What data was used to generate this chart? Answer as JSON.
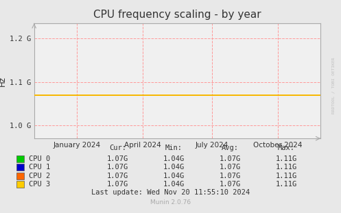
{
  "title": "CPU frequency scaling - by year",
  "ylabel": "Hz",
  "background_color": "#e8e8e8",
  "plot_bg_color": "#f0f0f0",
  "grid_color": "#ff9999",
  "yticks": [
    1000000000.0,
    1100000000.0,
    1200000000.0
  ],
  "ytick_labels": [
    "1.0 G",
    "1.1 G",
    "1.2 G"
  ],
  "ylim": [
    970000000.0,
    1235000000.0
  ],
  "xtick_labels": [
    "January 2024",
    "April 2024",
    "July 2024",
    "October 2024"
  ],
  "xtick_positions": [
    0.15,
    0.38,
    0.62,
    0.85
  ],
  "cpu_colors": [
    "#00cc00",
    "#0000cc",
    "#ff6600",
    "#ffcc00"
  ],
  "cpu_names": [
    "CPU 0",
    "CPU 1",
    "CPU 2",
    "CPU 3"
  ],
  "cur_values": [
    "1.07G",
    "1.07G",
    "1.07G",
    "1.07G"
  ],
  "min_values": [
    "1.04G",
    "1.04G",
    "1.04G",
    "1.04G"
  ],
  "avg_values": [
    "1.07G",
    "1.07G",
    "1.07G",
    "1.07G"
  ],
  "max_values": [
    "1.11G",
    "1.11G",
    "1.11G",
    "1.11G"
  ],
  "last_update": "Last update: Wed Nov 20 11:55:10 2024",
  "munin_version": "Munin 2.0.76",
  "rrdtool_text": "RRDTOOL / TOBI OETIKER",
  "line_y_value": 1070000000.0,
  "title_fontsize": 11,
  "axis_fontsize": 7.5,
  "legend_fontsize": 7.5,
  "font_color": "#333333",
  "light_gray": "#bbbbbb",
  "spine_color": "#aaaaaa"
}
